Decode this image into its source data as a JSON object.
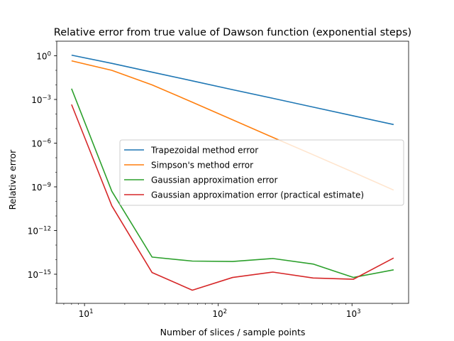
{
  "chart_data": {
    "type": "line",
    "title": "Relative error from true value of Dawson function (exponential steps)",
    "xlabel": "Number of slices / sample points",
    "ylabel": "Relative error",
    "xscale": "log",
    "yscale": "log",
    "xlim": [
      6.2,
      2650
    ],
    "ylim": [
      1e-17,
      10.0
    ],
    "x_ticks": [
      {
        "value": 10,
        "base": "10",
        "exp": "1"
      },
      {
        "value": 100,
        "base": "10",
        "exp": "2"
      },
      {
        "value": 1000,
        "base": "10",
        "exp": "3"
      }
    ],
    "y_ticks": [
      {
        "value": 1,
        "base": "10",
        "exp": "0"
      },
      {
        "value": 0.001,
        "base": "10",
        "exp": "−3"
      },
      {
        "value": 1e-06,
        "base": "10",
        "exp": "−6"
      },
      {
        "value": 1e-09,
        "base": "10",
        "exp": "−9"
      },
      {
        "value": 1e-12,
        "base": "10",
        "exp": "−12"
      },
      {
        "value": 1e-15,
        "base": "10",
        "exp": "−15"
      }
    ],
    "grid": false,
    "legend_position": "center-right",
    "x": [
      8,
      16,
      32,
      64,
      128,
      256,
      512,
      1024,
      2048
    ],
    "series": [
      {
        "name": "Trapezoidal method error",
        "color": "#1f77b4",
        "values": [
          1.1,
          0.3,
          0.075,
          0.019,
          0.0047,
          0.0012,
          0.0003,
          7.5e-05,
          1.9e-05
        ]
      },
      {
        "name": "Simpson's method error",
        "color": "#ff7f0e",
        "values": [
          0.45,
          0.1,
          0.01,
          0.00065,
          4e-05,
          2.5e-06,
          1.6e-07,
          1e-08,
          6e-10
        ]
      },
      {
        "name": "Gaussian approximation error",
        "color": "#2ca02c",
        "values": [
          0.0055,
          5e-10,
          1.5e-14,
          8e-15,
          7.5e-15,
          1.2e-14,
          5e-15,
          6e-16,
          2e-15
        ]
      },
      {
        "name": "Gaussian approximation error (practical estimate)",
        "color": "#d62728",
        "values": [
          0.00045,
          5e-11,
          1.3e-15,
          8e-17,
          6e-16,
          1.4e-15,
          5.5e-16,
          4.5e-16,
          1.3e-14
        ]
      }
    ]
  }
}
